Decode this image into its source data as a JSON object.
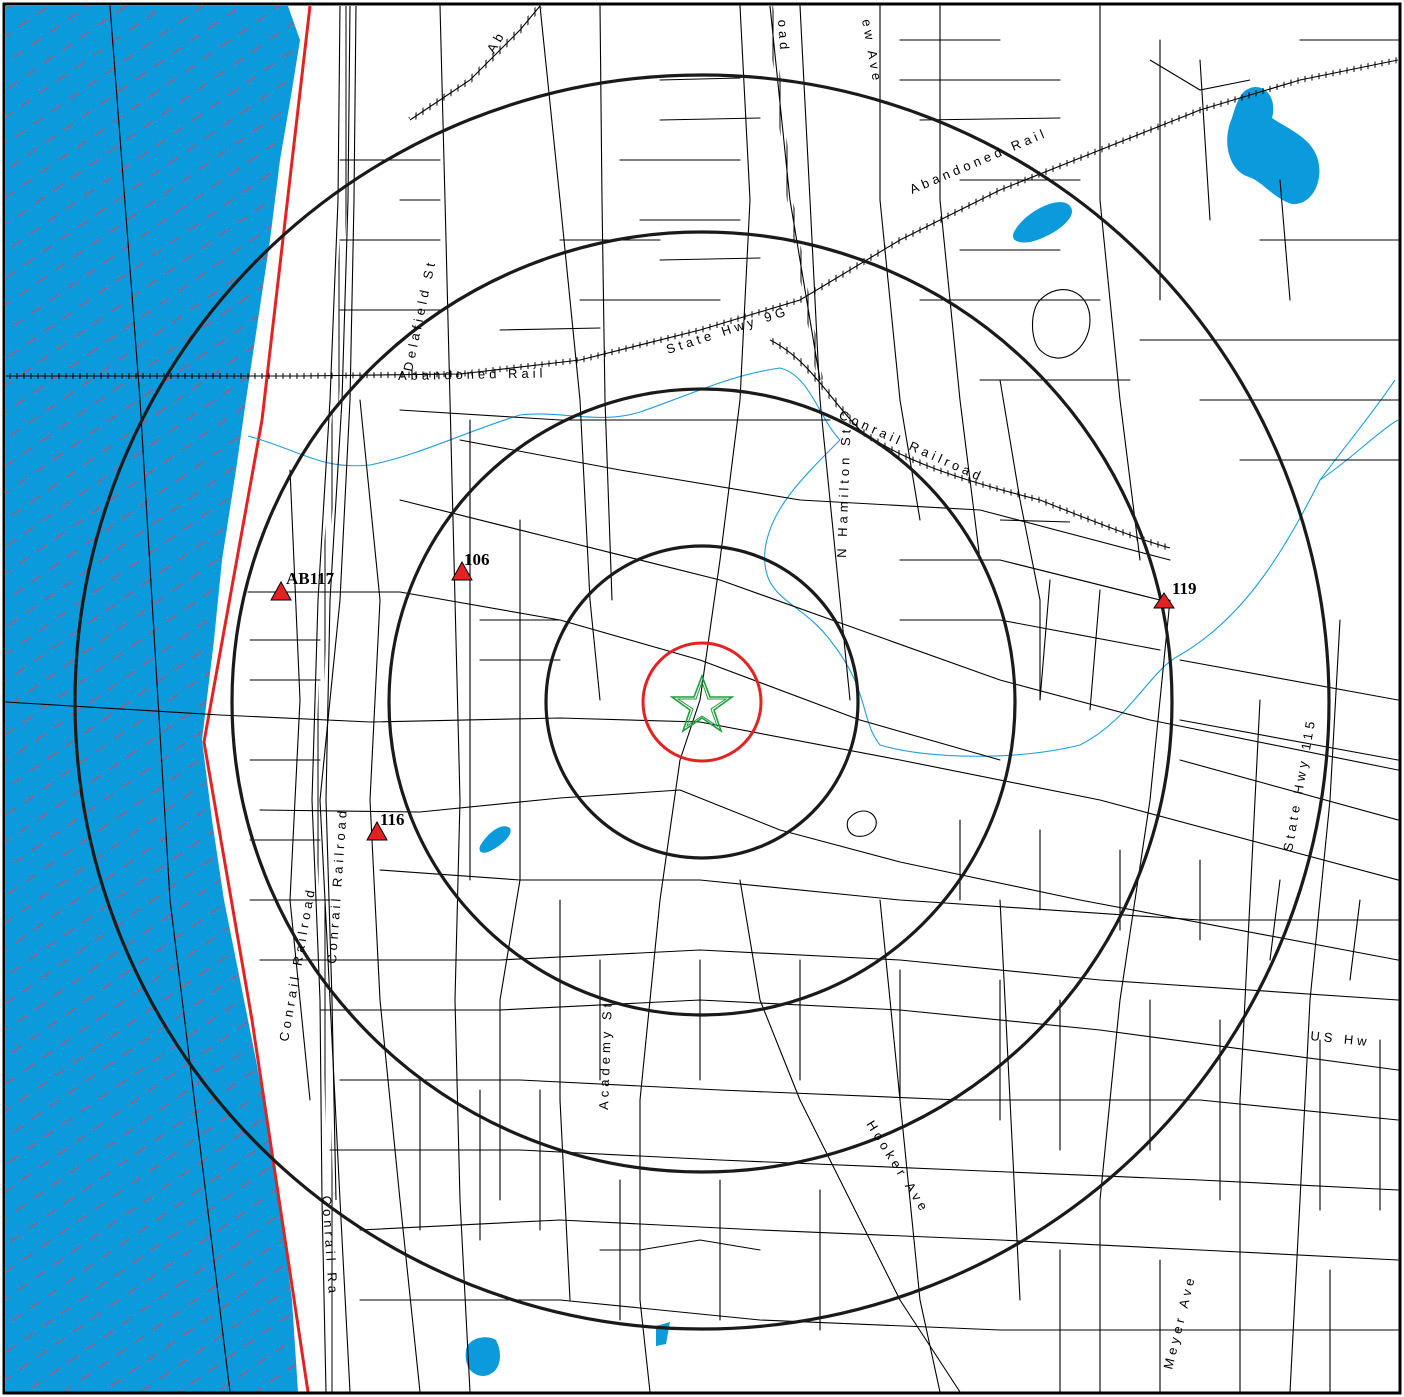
{
  "colors": {
    "water": "#0b9bdc",
    "water_hatch": "#e0404e",
    "stream": "#1fa0d8",
    "boundary": "#e52222",
    "ring": "#1a1a1a",
    "inner_ring": "#e52222",
    "target": "#1e9c3c",
    "site_marker": "#e52222"
  },
  "rings": [
    {
      "id": "ring-quarter",
      "color": "red"
    },
    {
      "id": "ring-1",
      "color": "black"
    },
    {
      "id": "ring-2",
      "color": "black"
    },
    {
      "id": "ring-3",
      "color": "black"
    },
    {
      "id": "ring-4",
      "color": "black"
    }
  ],
  "target": {
    "icon": "star-icon"
  },
  "sites": [
    {
      "label": "AB117",
      "icon": "site-triangle-icon"
    },
    {
      "label": "106",
      "icon": "site-triangle-icon"
    },
    {
      "label": "116",
      "icon": "site-triangle-icon"
    },
    {
      "label": "119",
      "icon": "site-triangle-icon"
    }
  ],
  "streets": [
    {
      "label": "Abandoned Rail"
    },
    {
      "label": "Abandoned Rail"
    },
    {
      "label": "State Hwy 9G"
    },
    {
      "label": "Conrail Railroad"
    },
    {
      "label": "Delafield St"
    },
    {
      "label": "N Hamilton St"
    },
    {
      "label": "Academy St"
    },
    {
      "label": "Hooker Ave"
    },
    {
      "label": "State Hwy 115"
    },
    {
      "label": "US Hw"
    },
    {
      "label": "Meyer Ave"
    },
    {
      "label": "Conrail Railroad"
    },
    {
      "label": "Conrail Ra"
    },
    {
      "label": "Conrail Railroad"
    },
    {
      "label": "ew Ave"
    },
    {
      "label": "oad"
    },
    {
      "label": "Ab"
    }
  ]
}
